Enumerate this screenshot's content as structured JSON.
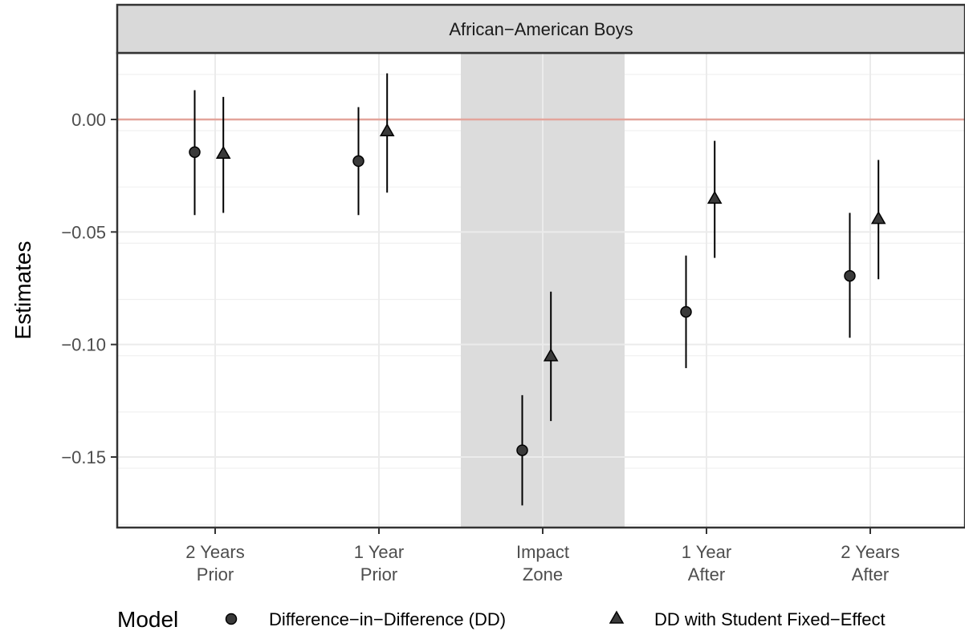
{
  "chart_data": {
    "type": "scatter",
    "title": "African−American Boys",
    "xlabel": "",
    "ylabel": "Estimates",
    "categories": [
      "2 Years\nPrior",
      "1 Year\nPrior",
      "Impact\nZone",
      "1 Year\nAfter",
      "2 Years\nAfter"
    ],
    "ylim": [
      -0.18,
      0.03
    ],
    "yticks": [
      0.0,
      -0.05,
      -0.1,
      -0.15
    ],
    "ytick_labels": [
      "0.00",
      "−0.05",
      "−0.10",
      "−0.15"
    ],
    "reference_line": 0.0,
    "reference_line_color": "#e3a49b",
    "shaded_category": "Impact\nZone",
    "shade_color": "#dcdcdc",
    "grid": true,
    "legend": {
      "title": "Model",
      "position": "bottom",
      "entries": [
        {
          "label": "Difference−in−Difference (DD)",
          "shape": "circle"
        },
        {
          "label": "DD with Student Fixed−Effect",
          "shape": "triangle"
        }
      ]
    },
    "series": [
      {
        "shape": "circle",
        "offset": -0.25,
        "values": [
          -0.0145,
          -0.0185,
          -0.147,
          -0.0855,
          -0.0695
        ],
        "lower": [
          -0.0425,
          -0.0425,
          -0.1715,
          -0.1105,
          -0.097
        ],
        "upper": [
          0.013,
          0.0055,
          -0.1225,
          -0.0605,
          -0.0415
        ]
      },
      {
        "shape": "triangle",
        "offset": 0.1,
        "values": [
          -0.0155,
          -0.0055,
          -0.1055,
          -0.0355,
          -0.0445
        ],
        "lower": [
          -0.0415,
          -0.0325,
          -0.134,
          -0.0615,
          -0.071
        ],
        "upper": [
          0.01,
          0.0205,
          -0.0765,
          -0.0095,
          -0.018
        ]
      }
    ]
  }
}
